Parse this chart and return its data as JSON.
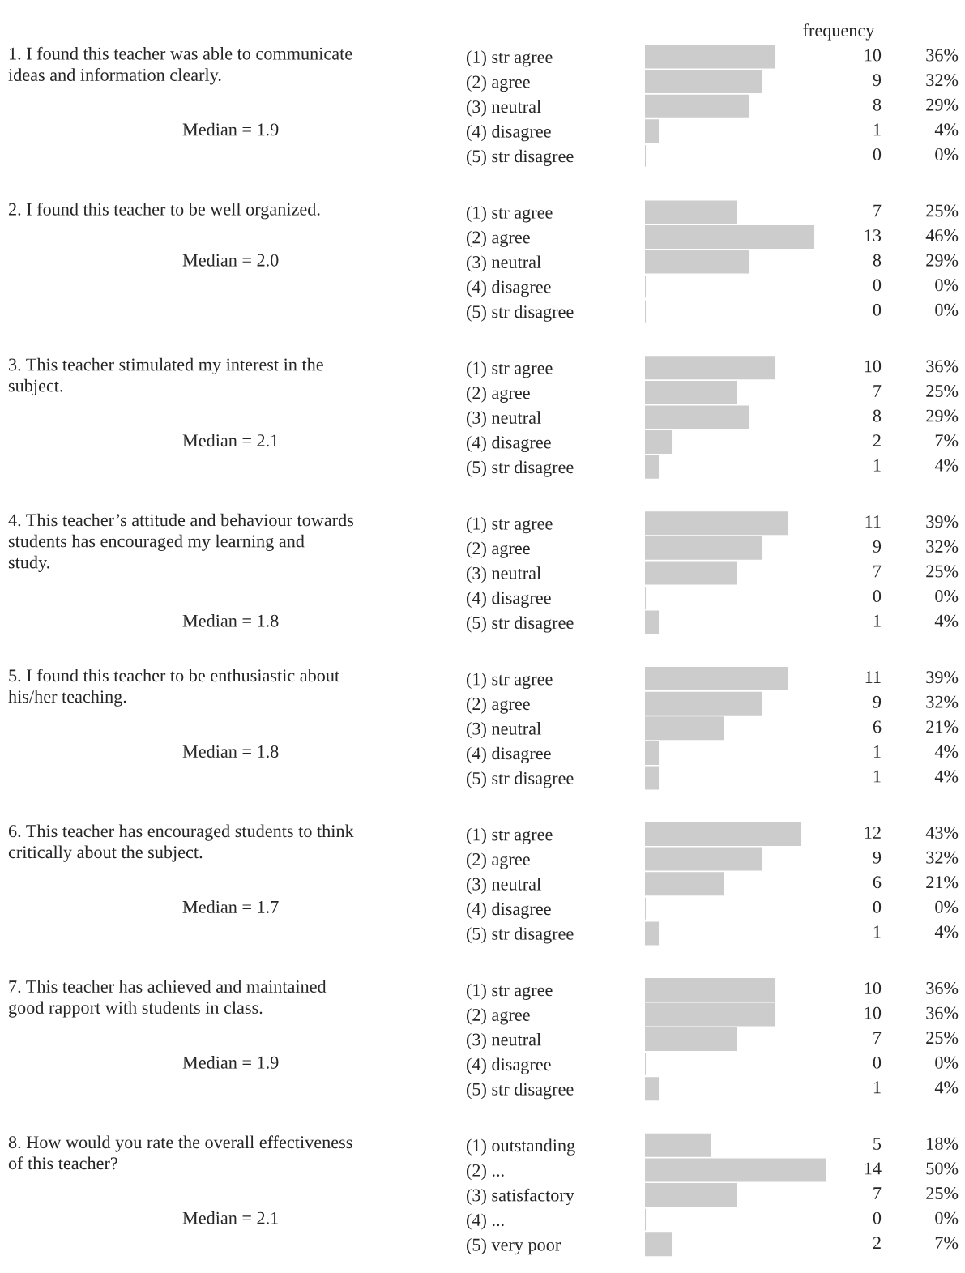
{
  "chart_data": [
    {
      "type": "bar",
      "orientation": "horizontal",
      "xlabel": "frequency",
      "categories": [
        "(1) str agree",
        "(2) agree",
        "(3) neutral",
        "(4) disagree",
        "(5) str disagree"
      ],
      "values": [
        10,
        9,
        8,
        1,
        0
      ],
      "annotations": [
        "1. I found this teacher was able to communicate\nideas and information clearly.",
        "Median = 1.9",
        "36%",
        "32%",
        "29%",
        "4%",
        "0%"
      ],
      "data_labels": true,
      "color": "#cccccc"
    },
    {
      "type": "bar",
      "orientation": "horizontal",
      "categories": [
        "(1) str agree",
        "(2) agree",
        "(3) neutral",
        "(4) disagree",
        "(5) str disagree"
      ],
      "values": [
        7,
        13,
        8,
        0,
        0
      ],
      "annotations": [
        "2. I found this teacher to be well organized.",
        "Median = 2.0",
        "25%",
        "46%",
        "29%",
        "0%",
        "0%"
      ],
      "data_labels": true,
      "color": "#cccccc"
    },
    {
      "type": "bar",
      "orientation": "horizontal",
      "categories": [
        "(1) str agree",
        "(2) agree",
        "(3) neutral",
        "(4) disagree",
        "(5) str disagree"
      ],
      "values": [
        10,
        7,
        8,
        2,
        1
      ],
      "annotations": [
        "3. This teacher stimulated my interest in the\nsubject.",
        "Median = 2.1",
        "36%",
        "25%",
        "29%",
        "7%",
        "4%"
      ],
      "data_labels": true,
      "color": "#cccccc"
    },
    {
      "type": "bar",
      "orientation": "horizontal",
      "categories": [
        "(1) str agree",
        "(2) agree",
        "(3) neutral",
        "(4) disagree",
        "(5) str disagree"
      ],
      "values": [
        11,
        9,
        7,
        0,
        1
      ],
      "annotations": [
        "4. This teacher’s attitude and behaviour towards\nstudents has encouraged my learning and\nstudy.",
        "Median = 1.8",
        "39%",
        "32%",
        "25%",
        "0%",
        "4%"
      ],
      "data_labels": true,
      "color": "#cccccc"
    },
    {
      "type": "bar",
      "orientation": "horizontal",
      "categories": [
        "(1) str agree",
        "(2) agree",
        "(3) neutral",
        "(4) disagree",
        "(5) str disagree"
      ],
      "values": [
        11,
        9,
        6,
        1,
        1
      ],
      "annotations": [
        "5. I found this teacher to be enthusiastic about\nhis/her teaching.",
        "Median = 1.8",
        "39%",
        "32%",
        "21%",
        "4%",
        "4%"
      ],
      "data_labels": true,
      "color": "#cccccc"
    },
    {
      "type": "bar",
      "orientation": "horizontal",
      "categories": [
        "(1) str agree",
        "(2) agree",
        "(3) neutral",
        "(4) disagree",
        "(5) str disagree"
      ],
      "values": [
        12,
        9,
        6,
        0,
        1
      ],
      "annotations": [
        "6. This teacher has encouraged students to think\ncritically about the subject.",
        "Median = 1.7",
        "43%",
        "32%",
        "21%",
        "0%",
        "4%"
      ],
      "data_labels": true,
      "color": "#cccccc"
    },
    {
      "type": "bar",
      "orientation": "horizontal",
      "categories": [
        "(1) str agree",
        "(2) agree",
        "(3) neutral",
        "(4) disagree",
        "(5) str disagree"
      ],
      "values": [
        10,
        10,
        7,
        0,
        1
      ],
      "annotations": [
        "7. This teacher has achieved and maintained\ngood rapport with students in class.",
        "Median = 1.9",
        "36%",
        "36%",
        "25%",
        "0%",
        "4%"
      ],
      "data_labels": true,
      "color": "#cccccc"
    },
    {
      "type": "bar",
      "orientation": "horizontal",
      "categories": [
        "(1) outstanding",
        "(2) ...",
        "(3) satisfactory",
        "(4) ...",
        "(5) very poor"
      ],
      "values": [
        5,
        14,
        7,
        0,
        2
      ],
      "annotations": [
        "8. How would you rate the overall effectiveness\nof this teacher?",
        "Median = 2.1",
        "18%",
        "50%",
        "25%",
        "0%",
        "7%"
      ],
      "data_labels": true,
      "color": "#cccccc"
    }
  ]
}
